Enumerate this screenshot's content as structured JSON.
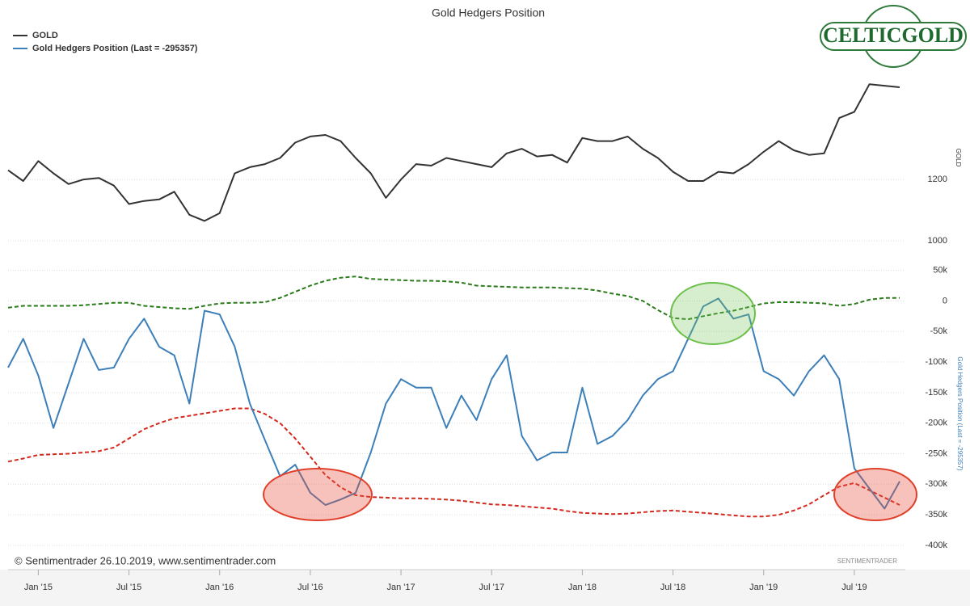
{
  "chart_data": [
    {
      "type": "line",
      "title": "Gold Hedgers Position",
      "y_label": "GOLD",
      "x": [
        "2014-11",
        "2014-12",
        "2015-01",
        "2015-02",
        "2015-03",
        "2015-04",
        "2015-05",
        "2015-06",
        "2015-07",
        "2015-08",
        "2015-09",
        "2015-10",
        "2015-11",
        "2015-12",
        "2016-01",
        "2016-02",
        "2016-03",
        "2016-04",
        "2016-05",
        "2016-06",
        "2016-07",
        "2016-08",
        "2016-09",
        "2016-10",
        "2016-11",
        "2016-12",
        "2017-01",
        "2017-02",
        "2017-03",
        "2017-04",
        "2017-05",
        "2017-06",
        "2017-07",
        "2017-08",
        "2017-09",
        "2017-10",
        "2017-11",
        "2017-12",
        "2018-01",
        "2018-02",
        "2018-03",
        "2018-04",
        "2018-05",
        "2018-06",
        "2018-07",
        "2018-08",
        "2018-09",
        "2018-10",
        "2018-11",
        "2018-12",
        "2019-01",
        "2019-02",
        "2019-03",
        "2019-04",
        "2019-05",
        "2019-06",
        "2019-07",
        "2019-08",
        "2019-09",
        "2019-10"
      ],
      "xlim": [
        "2014-11",
        "2019-10"
      ],
      "series": [
        {
          "name": "GOLD",
          "color": "#333333",
          "values": [
            1230,
            1195,
            1260,
            1220,
            1185,
            1200,
            1205,
            1180,
            1120,
            1130,
            1135,
            1160,
            1085,
            1065,
            1090,
            1220,
            1240,
            1250,
            1270,
            1320,
            1340,
            1345,
            1325,
            1270,
            1220,
            1140,
            1200,
            1250,
            1245,
            1270,
            1260,
            1250,
            1240,
            1285,
            1300,
            1275,
            1280,
            1255,
            1335,
            1325,
            1325,
            1340,
            1300,
            1270,
            1225,
            1195,
            1195,
            1225,
            1220,
            1250,
            1290,
            1325,
            1295,
            1280,
            1285,
            1400,
            1420,
            1510,
            1505,
            1500
          ]
        }
      ],
      "ylim": [
        982,
        1600
      ],
      "yticks": [
        1000,
        1200
      ],
      "grid": true
    },
    {
      "type": "line",
      "y_label": "Gold Hedgers Position (Last = -295357)",
      "x": [
        "2014-11",
        "2014-12",
        "2015-01",
        "2015-02",
        "2015-03",
        "2015-04",
        "2015-05",
        "2015-06",
        "2015-07",
        "2015-08",
        "2015-09",
        "2015-10",
        "2015-11",
        "2015-12",
        "2016-01",
        "2016-02",
        "2016-03",
        "2016-04",
        "2016-05",
        "2016-06",
        "2016-07",
        "2016-08",
        "2016-09",
        "2016-10",
        "2016-11",
        "2016-12",
        "2017-01",
        "2017-02",
        "2017-03",
        "2017-04",
        "2017-05",
        "2017-06",
        "2017-07",
        "2017-08",
        "2017-09",
        "2017-10",
        "2017-11",
        "2017-12",
        "2018-01",
        "2018-02",
        "2018-03",
        "2018-04",
        "2018-05",
        "2018-06",
        "2018-07",
        "2018-08",
        "2018-09",
        "2018-10",
        "2018-11",
        "2018-12",
        "2019-01",
        "2019-02",
        "2019-03",
        "2019-04",
        "2019-05",
        "2019-06",
        "2019-07",
        "2019-08",
        "2019-09",
        "2019-10"
      ],
      "xlim": [
        "2014-11",
        "2019-10"
      ],
      "xticks": [
        {
          "value": "2015-01",
          "label": "Jan '15"
        },
        {
          "value": "2015-07",
          "label": "Jul '15"
        },
        {
          "value": "2016-01",
          "label": "Jan '16"
        },
        {
          "value": "2016-07",
          "label": "Jul '16"
        },
        {
          "value": "2017-01",
          "label": "Jan '17"
        },
        {
          "value": "2017-07",
          "label": "Jul '17"
        },
        {
          "value": "2018-01",
          "label": "Jan '18"
        },
        {
          "value": "2018-07",
          "label": "Jul '18"
        },
        {
          "value": "2019-01",
          "label": "Jan '19"
        },
        {
          "value": "2019-07",
          "label": "Jul '19"
        }
      ],
      "series": [
        {
          "name": "Gold Hedgers Position (Last = -295357)",
          "color": "#3d7fb8",
          "values": [
            -109000,
            -62000,
            -122000,
            -208000,
            -135000,
            -62000,
            -113000,
            -109000,
            -62000,
            -29000,
            -75000,
            -89000,
            -168000,
            -16000,
            -22000,
            -75000,
            -168000,
            -228000,
            -287000,
            -268000,
            -314000,
            -334000,
            -325000,
            -314000,
            -248000,
            -168000,
            -128000,
            -142000,
            -142000,
            -208000,
            -155000,
            -195000,
            -128000,
            -89000,
            -221000,
            -261000,
            -248000,
            -248000,
            -142000,
            -234000,
            -221000,
            -195000,
            -155000,
            -128000,
            -115000,
            -62000,
            -9000,
            4000,
            -29000,
            -22000,
            -115000,
            -128000,
            -155000,
            -115000,
            -89000,
            -128000,
            -274000,
            -307000,
            -340000,
            -295357
          ]
        }
      ],
      "bands": [
        {
          "color": "#2a7a1a",
          "values": [
            -11000,
            -8000,
            -8000,
            -8000,
            -8000,
            -7000,
            -5000,
            -3000,
            -3000,
            -8000,
            -10000,
            -12000,
            -13000,
            -8000,
            -4000,
            -3000,
            -3000,
            -2000,
            5000,
            15000,
            25000,
            33000,
            38000,
            40000,
            36000,
            35000,
            34000,
            33000,
            33000,
            32000,
            30000,
            25000,
            24000,
            23000,
            22000,
            22000,
            22000,
            21000,
            20000,
            17000,
            12000,
            8000,
            0,
            -15000,
            -28000,
            -30000,
            -25000,
            -20000,
            -16000,
            -10000,
            -4000,
            -2000,
            -2000,
            -3000,
            -4000,
            -8000,
            -5000,
            2000,
            5000,
            5000
          ]
        },
        {
          "color": "#d42a1e",
          "values": [
            -263000,
            -258000,
            -252000,
            -251000,
            -250000,
            -248000,
            -246000,
            -240000,
            -225000,
            -210000,
            -200000,
            -192000,
            -188000,
            -184000,
            -180000,
            -176000,
            -176000,
            -185000,
            -200000,
            -225000,
            -255000,
            -285000,
            -305000,
            -318000,
            -321000,
            -322000,
            -323000,
            -323000,
            -324000,
            -325000,
            -327000,
            -330000,
            -333000,
            -334000,
            -336000,
            -338000,
            -340000,
            -344000,
            -347000,
            -348000,
            -349000,
            -348000,
            -346000,
            -344000,
            -343000,
            -345000,
            -347000,
            -349000,
            -351000,
            -353000,
            -353000,
            -350000,
            -343000,
            -333000,
            -318000,
            -304000,
            -298000,
            -310000,
            -322000,
            -334000
          ]
        }
      ],
      "ylim": [
        -420000,
        72000
      ],
      "yticks": [
        {
          "value": 50000,
          "label": "50k"
        },
        0,
        {
          "value": -50000,
          "label": "-50k"
        },
        {
          "value": -100000,
          "label": "-100k"
        },
        {
          "value": -150000,
          "label": "-150k"
        },
        {
          "value": -200000,
          "label": "-200k"
        },
        {
          "value": -250000,
          "label": "-250k"
        },
        {
          "value": -300000,
          "label": "-300k"
        },
        {
          "value": -350000,
          "label": "-350k"
        },
        {
          "value": -400000,
          "label": "-400k"
        }
      ],
      "grid": true
    }
  ],
  "credit": "© Sentimentrader 26.10.2019, www.sentimentrader.com",
  "watermark": "SENTIMENTRADER",
  "logo": "CELTICGOLD"
}
